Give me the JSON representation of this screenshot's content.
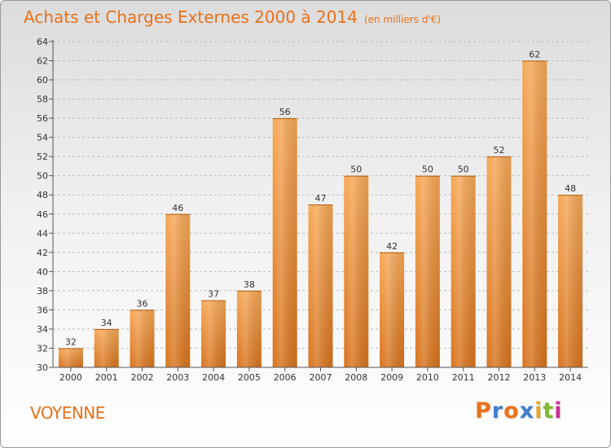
{
  "header": {
    "title": "Achats et Charges Externes 2000 à 2014",
    "subtitle": "(en milliers d'€)"
  },
  "footer": {
    "commune": "VOYENNE",
    "logo": "Proxiti",
    "logo_colors": [
      "#e8711a",
      "#3f7fd0",
      "#e8711a",
      "#3f7fd0",
      "#e2a82a",
      "#7fb832",
      "#d0309a"
    ]
  },
  "colors": {
    "bar_light": "#f6a857",
    "bar_dark": "#d8741e",
    "axis": "#555555",
    "grid": "#bdbdbd",
    "title": "#e8711a"
  },
  "chart_data": {
    "type": "bar",
    "title": "Achats et Charges Externes 2000 à 2014",
    "subtitle": "(en milliers d'€)",
    "xlabel": "",
    "ylabel": "",
    "categories": [
      "2000",
      "2001",
      "2002",
      "2003",
      "2004",
      "2005",
      "2006",
      "2007",
      "2008",
      "2009",
      "2010",
      "2011",
      "2012",
      "2013",
      "2014"
    ],
    "values": [
      32,
      34,
      36,
      46,
      37,
      38,
      56,
      47,
      50,
      42,
      50,
      50,
      52,
      62,
      48
    ],
    "ylim": [
      30,
      64
    ],
    "yticks": [
      30,
      32,
      34,
      36,
      38,
      40,
      42,
      44,
      46,
      48,
      50,
      52,
      54,
      56,
      58,
      60,
      62,
      64
    ],
    "grid": true,
    "data_labels": true
  }
}
